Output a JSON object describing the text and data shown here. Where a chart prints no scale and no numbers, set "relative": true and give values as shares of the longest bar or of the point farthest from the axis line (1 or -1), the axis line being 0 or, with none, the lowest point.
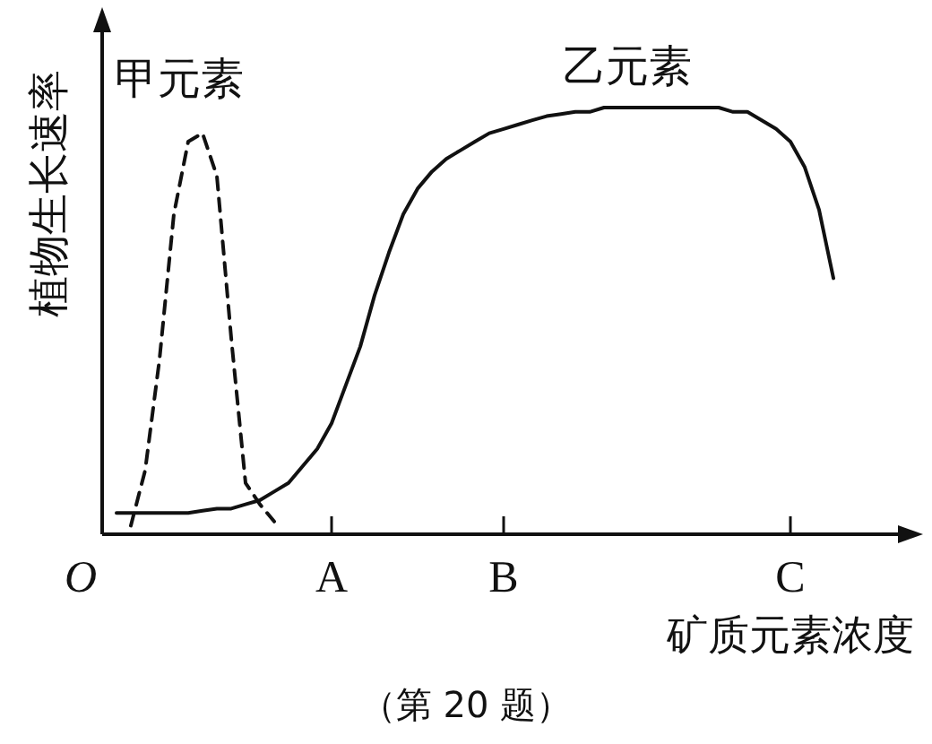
{
  "chart_data": {
    "type": "line",
    "relative": true,
    "xlabel": "矿质元素浓度",
    "ylabel": "植物生长速率",
    "categories": [
      "O",
      null,
      null,
      null,
      null,
      null,
      null,
      null,
      null,
      null,
      null,
      null,
      null,
      null,
      null,
      null,
      "A",
      null,
      null,
      null,
      null,
      null,
      null,
      null,
      null,
      null,
      null,
      null,
      "B",
      null,
      null,
      null,
      null,
      null,
      null,
      null,
      null,
      null,
      null,
      null,
      null,
      null,
      null,
      null,
      null,
      null,
      null,
      null,
      "C",
      null,
      null,
      null,
      null
    ],
    "series": [
      {
        "name": "甲元素",
        "color": "#111111",
        "line_style": "dashed",
        "values": [
          null,
          null,
          0.02,
          0.15,
          0.41,
          0.75,
          0.92,
          0.94,
          0.84,
          0.46,
          0.12,
          0.07,
          0.03,
          null,
          null,
          null,
          null,
          null,
          null,
          null,
          null,
          null,
          null,
          null,
          null,
          null,
          null,
          null,
          null,
          null,
          null,
          null,
          null,
          null,
          null,
          null,
          null,
          null,
          null,
          null,
          null,
          null,
          null,
          null,
          null,
          null,
          null,
          null,
          null,
          null,
          null,
          null,
          null
        ]
      },
      {
        "name": "乙元素",
        "color": "#111111",
        "line_style": "solid",
        "values": [
          null,
          0.05,
          0.05,
          0.05,
          0.05,
          0.05,
          0.05,
          0.055,
          0.06,
          0.06,
          0.07,
          0.08,
          0.1,
          0.12,
          0.16,
          0.2,
          0.26,
          0.35,
          0.44,
          0.56,
          0.66,
          0.75,
          0.81,
          0.85,
          0.88,
          0.9,
          0.92,
          0.94,
          0.95,
          0.96,
          0.97,
          0.98,
          0.985,
          0.99,
          0.99,
          1.0,
          1.0,
          1.0,
          1.0,
          1.0,
          1.0,
          1.0,
          1.0,
          1.0,
          0.99,
          0.99,
          0.97,
          0.95,
          0.92,
          0.86,
          0.76,
          0.6,
          null
        ]
      }
    ],
    "annotations": [
      "（第 20 题）"
    ]
  }
}
